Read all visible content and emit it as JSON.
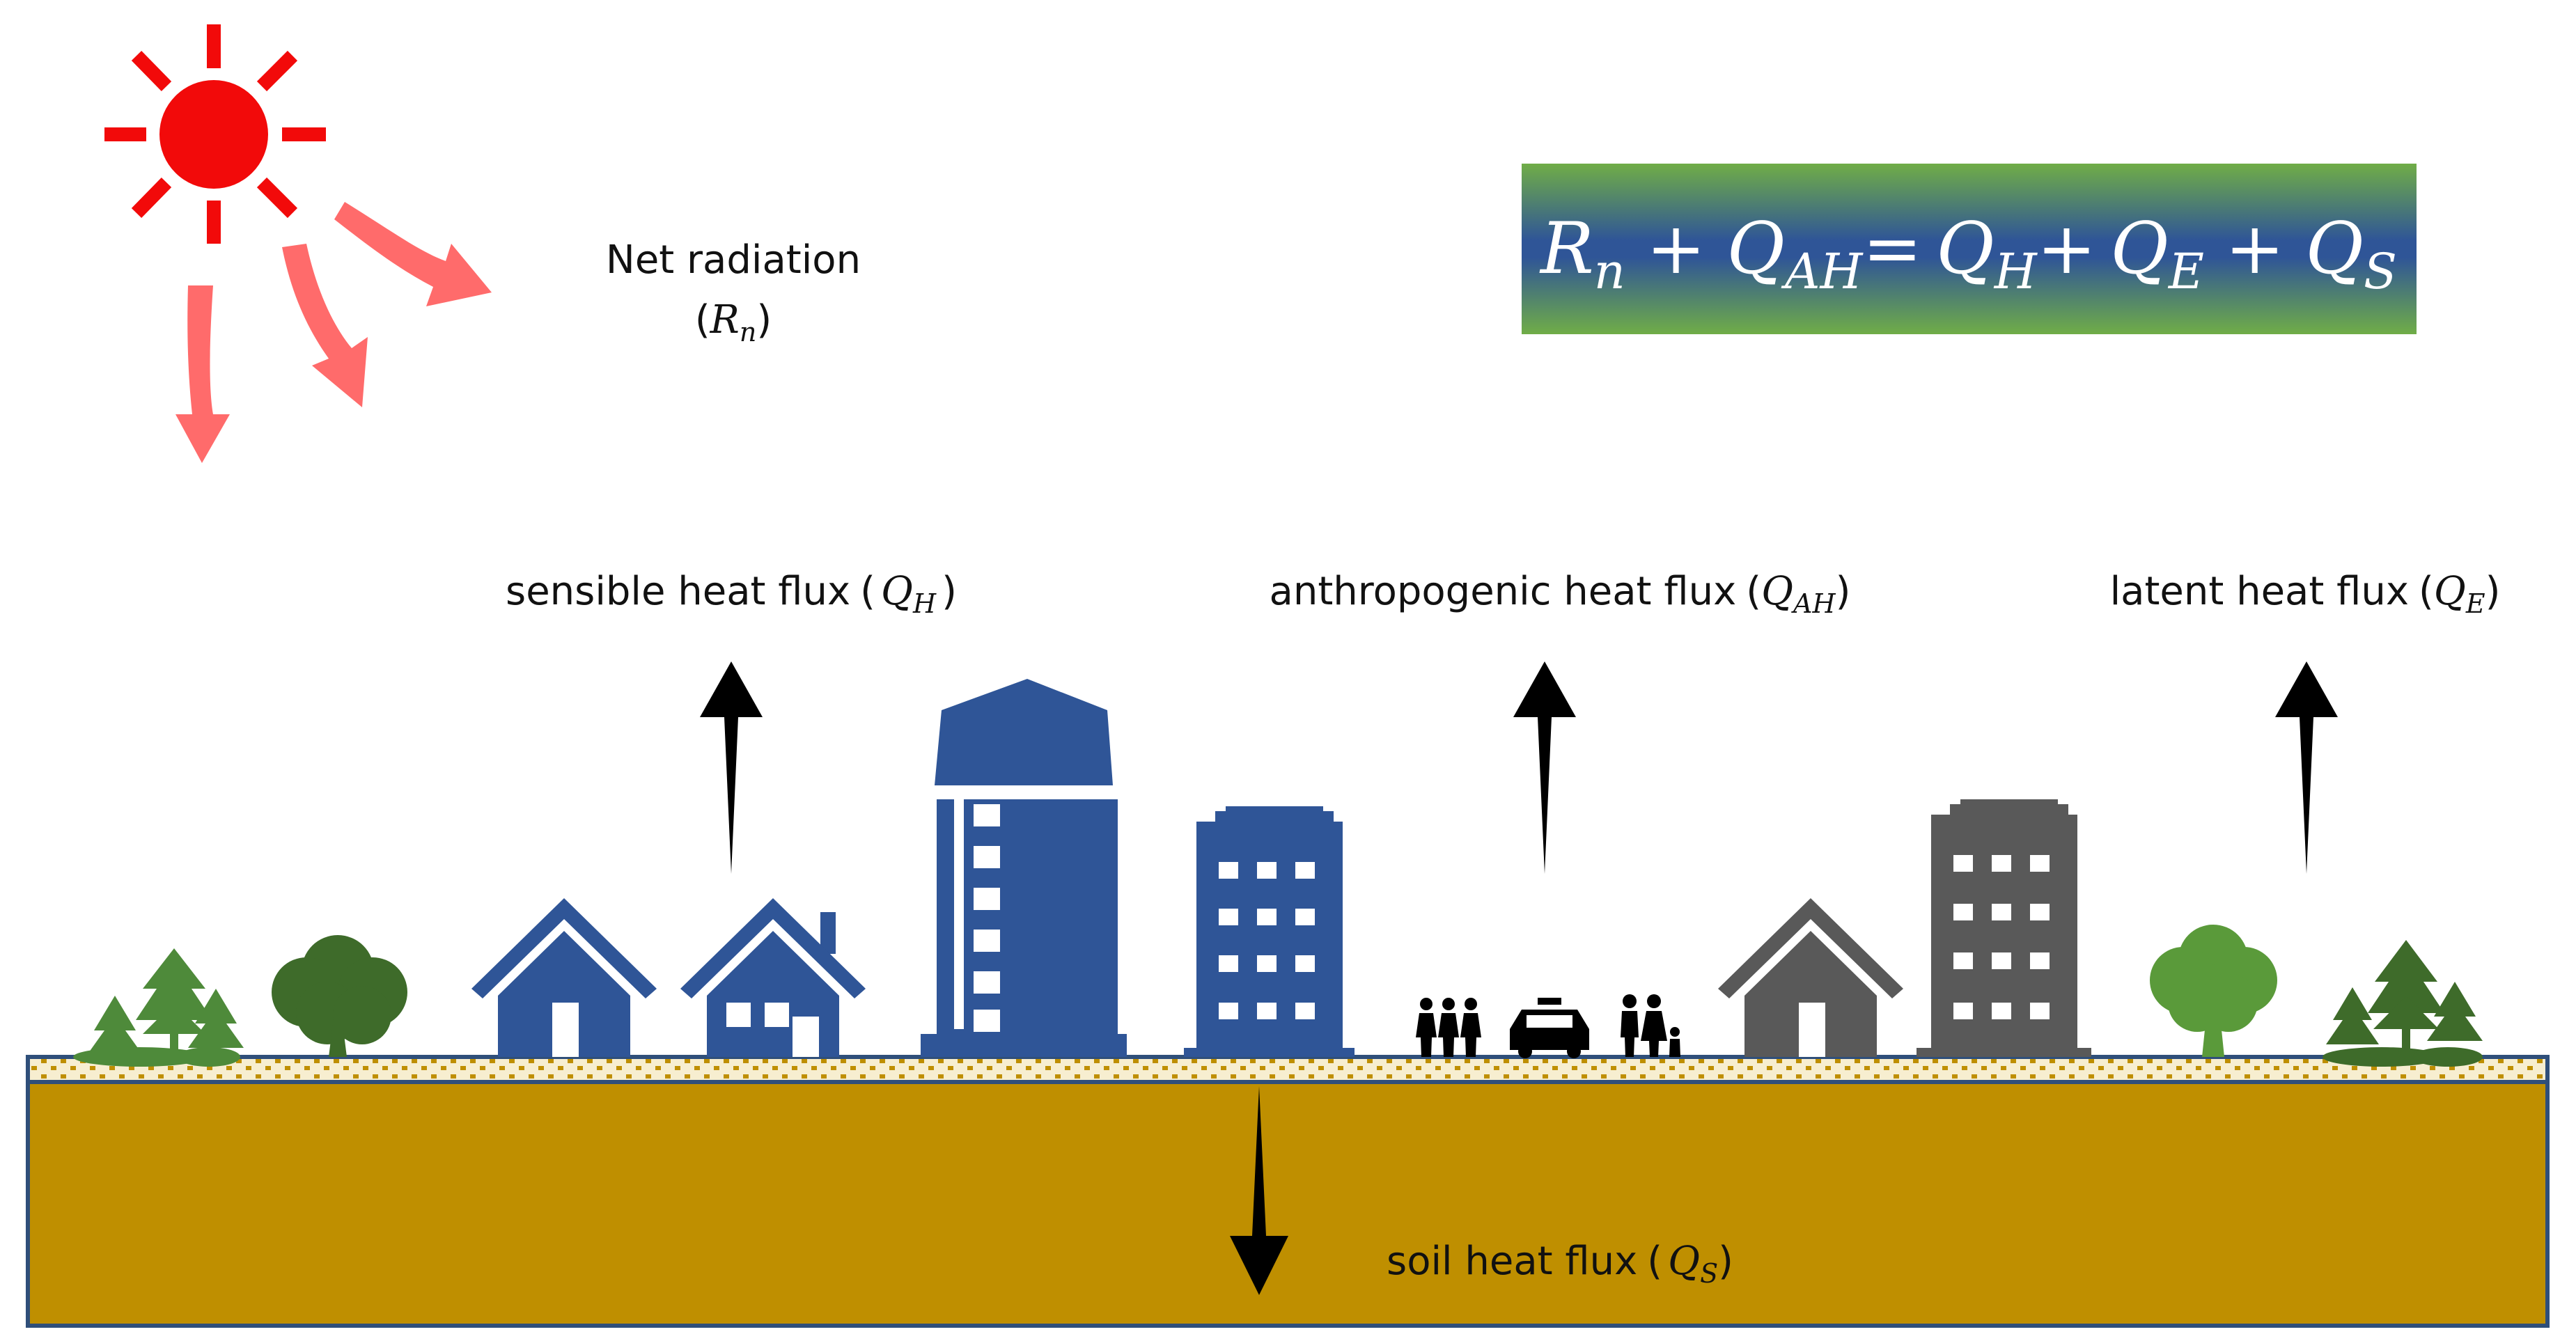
{
  "labels": {
    "net_radiation": {
      "text": "Net radiation",
      "symbol": "R",
      "sub": "n"
    },
    "sensible": {
      "text": "sensible heat flux",
      "symbol": "Q",
      "sub": "H"
    },
    "anthropogenic": {
      "text": "anthropogenic heat flux",
      "symbol": "Q",
      "sub": "AH"
    },
    "latent": {
      "text": "latent heat flux",
      "symbol": "Q",
      "sub": "E"
    },
    "soil": {
      "text": "soil heat flux",
      "symbol": "Q",
      "sub": "S"
    }
  },
  "equation": {
    "terms": [
      {
        "symbol": "R",
        "sub": "n"
      },
      {
        "symbol": "Q",
        "sub": "AH"
      },
      {
        "symbol": "Q",
        "sub": "H"
      },
      {
        "symbol": "Q",
        "sub": "E"
      },
      {
        "symbol": "Q",
        "sub": "S"
      }
    ],
    "plus": "+",
    "equals": "=",
    "open_paren": "(",
    "close_paren": ")"
  },
  "colors": {
    "sun": "#f20a0a",
    "sun_rays": "#ff6b6b",
    "buildings_blue": "#2f5597",
    "buildings_gray": "#595959",
    "trees_green": "#3e7b2f",
    "soil": "#bf8f00",
    "soil_border": "#2f4f7a",
    "equation_gradient": [
      "#70ad47",
      "#2f5597",
      "#70ad47"
    ]
  },
  "icons": [
    "sun-icon",
    "tree-icon",
    "house-icon",
    "tower-icon",
    "apartment-icon",
    "people-icon",
    "car-icon",
    "family-icon"
  ]
}
